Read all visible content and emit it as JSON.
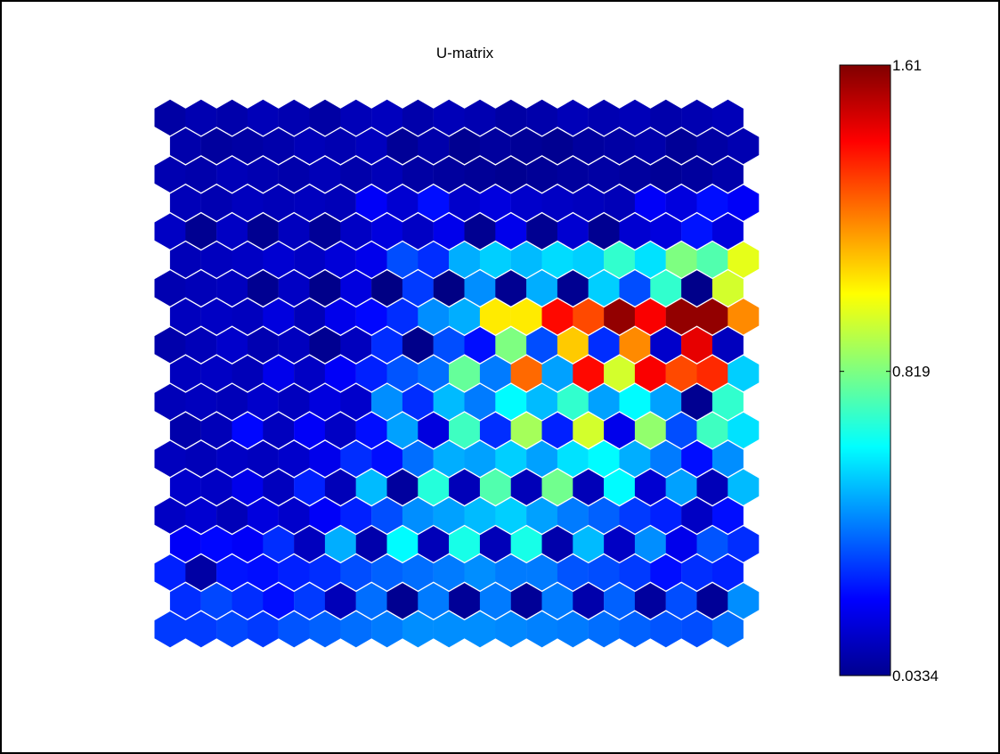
{
  "chart_data": {
    "type": "heatmap",
    "title": "U-matrix",
    "grid": "hexagonal",
    "rows": 19,
    "cols": 19,
    "colorbar": {
      "min": 0.0334,
      "max": 1.61,
      "tick_labels": [
        "1.61",
        "0.819",
        "0.0334"
      ],
      "tick_values": [
        1.61,
        0.819,
        0.0334
      ],
      "colormap": "jet"
    },
    "values": [
      [
        0.09,
        0.11,
        0.1,
        0.12,
        0.11,
        0.09,
        0.12,
        0.13,
        0.1,
        0.12,
        0.11,
        0.09,
        0.1,
        0.12,
        0.11,
        0.12,
        0.1,
        0.11,
        0.12
      ],
      [
        0.1,
        0.08,
        0.09,
        0.1,
        0.12,
        0.11,
        0.13,
        0.07,
        0.1,
        0.06,
        0.08,
        0.07,
        0.06,
        0.08,
        0.09,
        0.1,
        0.07,
        0.09,
        0.11
      ],
      [
        0.11,
        0.1,
        0.12,
        0.11,
        0.1,
        0.12,
        0.1,
        0.12,
        0.09,
        0.08,
        0.07,
        0.06,
        0.07,
        0.08,
        0.09,
        0.08,
        0.07,
        0.08,
        0.1
      ],
      [
        0.12,
        0.11,
        0.13,
        0.12,
        0.13,
        0.12,
        0.22,
        0.16,
        0.25,
        0.15,
        0.18,
        0.15,
        0.14,
        0.13,
        0.12,
        0.22,
        0.18,
        0.25,
        0.22
      ],
      [
        0.14,
        0.06,
        0.14,
        0.06,
        0.13,
        0.07,
        0.14,
        0.18,
        0.14,
        0.2,
        0.06,
        0.2,
        0.06,
        0.16,
        0.06,
        0.16,
        0.18,
        0.26,
        0.18
      ],
      [
        0.12,
        0.13,
        0.14,
        0.16,
        0.14,
        0.17,
        0.2,
        0.35,
        0.3,
        0.5,
        0.55,
        0.52,
        0.57,
        0.55,
        0.7,
        0.58,
        0.82,
        0.75,
        0.98
      ],
      [
        0.11,
        0.12,
        0.13,
        0.06,
        0.14,
        0.05,
        0.18,
        0.04,
        0.32,
        0.04,
        0.45,
        0.06,
        0.5,
        0.06,
        0.55,
        0.35,
        0.7,
        0.05,
        0.95
      ],
      [
        0.13,
        0.14,
        0.13,
        0.18,
        0.12,
        0.2,
        0.24,
        0.3,
        0.45,
        0.5,
        1.05,
        1.05,
        1.4,
        1.3,
        1.58,
        1.42,
        1.58,
        1.58,
        1.2
      ],
      [
        0.1,
        0.12,
        0.15,
        0.11,
        0.13,
        0.06,
        0.13,
        0.3,
        0.05,
        0.35,
        0.25,
        0.82,
        0.35,
        1.1,
        0.3,
        1.2,
        0.15,
        1.45,
        0.13
      ],
      [
        0.13,
        0.14,
        0.12,
        0.2,
        0.14,
        0.22,
        0.28,
        0.36,
        0.4,
        0.78,
        0.42,
        1.25,
        0.48,
        1.4,
        0.95,
        1.42,
        1.3,
        1.35,
        0.55
      ],
      [
        0.12,
        0.13,
        0.12,
        0.15,
        0.13,
        0.18,
        0.15,
        0.45,
        0.3,
        0.52,
        0.42,
        0.62,
        0.52,
        0.7,
        0.48,
        0.62,
        0.48,
        0.06,
        0.7
      ],
      [
        0.1,
        0.12,
        0.24,
        0.13,
        0.22,
        0.14,
        0.25,
        0.48,
        0.18,
        0.72,
        0.3,
        0.88,
        0.28,
        0.95,
        0.2,
        0.85,
        0.35,
        0.72,
        0.58
      ],
      [
        0.13,
        0.12,
        0.14,
        0.13,
        0.15,
        0.2,
        0.3,
        0.25,
        0.4,
        0.5,
        0.48,
        0.55,
        0.48,
        0.58,
        0.62,
        0.5,
        0.42,
        0.25,
        0.45
      ],
      [
        0.15,
        0.14,
        0.2,
        0.13,
        0.28,
        0.12,
        0.52,
        0.08,
        0.68,
        0.12,
        0.75,
        0.12,
        0.8,
        0.12,
        0.62,
        0.16,
        0.48,
        0.12,
        0.52
      ],
      [
        0.14,
        0.16,
        0.12,
        0.18,
        0.15,
        0.22,
        0.28,
        0.35,
        0.45,
        0.48,
        0.52,
        0.55,
        0.48,
        0.42,
        0.38,
        0.32,
        0.28,
        0.14,
        0.25
      ],
      [
        0.22,
        0.24,
        0.22,
        0.3,
        0.13,
        0.5,
        0.1,
        0.62,
        0.12,
        0.66,
        0.12,
        0.66,
        0.1,
        0.52,
        0.14,
        0.45,
        0.2,
        0.36,
        0.3
      ],
      [
        0.28,
        0.09,
        0.26,
        0.25,
        0.28,
        0.3,
        0.35,
        0.38,
        0.4,
        0.42,
        0.45,
        0.42,
        0.42,
        0.36,
        0.35,
        0.32,
        0.25,
        0.3,
        0.28
      ],
      [
        0.3,
        0.34,
        0.3,
        0.25,
        0.32,
        0.12,
        0.4,
        0.06,
        0.42,
        0.07,
        0.42,
        0.07,
        0.42,
        0.1,
        0.38,
        0.08,
        0.35,
        0.07,
        0.45
      ],
      [
        0.32,
        0.32,
        0.34,
        0.32,
        0.36,
        0.38,
        0.4,
        0.42,
        0.45,
        0.45,
        0.45,
        0.44,
        0.43,
        0.42,
        0.4,
        0.38,
        0.36,
        0.35,
        0.4
      ]
    ]
  }
}
